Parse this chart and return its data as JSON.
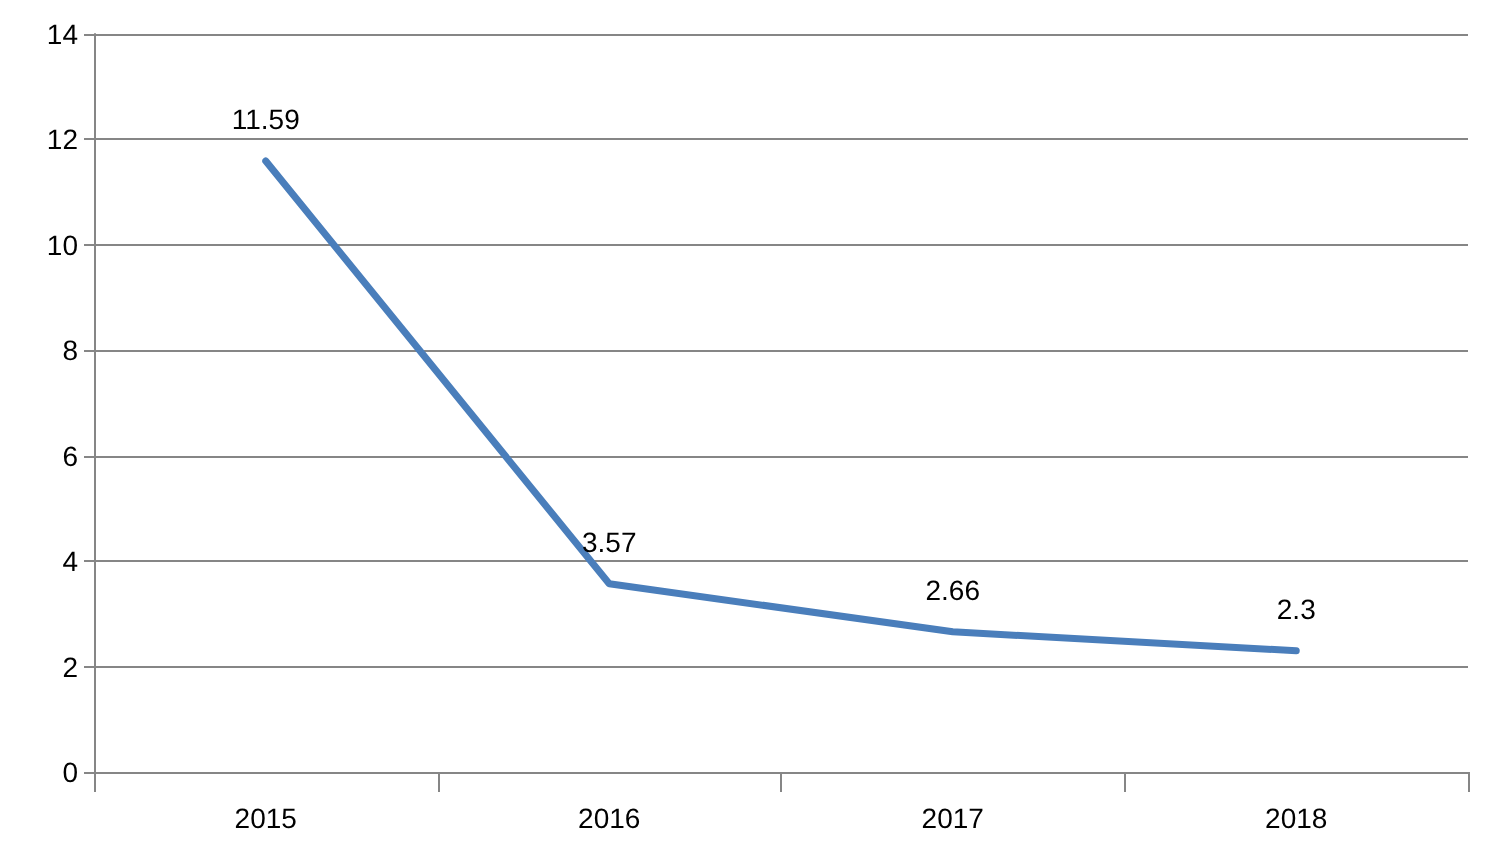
{
  "chart_data": {
    "type": "line",
    "categories": [
      "2015",
      "2016",
      "2017",
      "2018"
    ],
    "series": [
      {
        "color": "#4a7ebb",
        "values": [
          11.59,
          3.57,
          2.66,
          2.3
        ]
      }
    ],
    "ylim": [
      0,
      14
    ],
    "yticks": [
      0,
      2,
      4,
      6,
      8,
      10,
      12,
      14
    ],
    "grid": "y",
    "marker": "none",
    "line_style": "solid",
    "data_labels": true
  }
}
